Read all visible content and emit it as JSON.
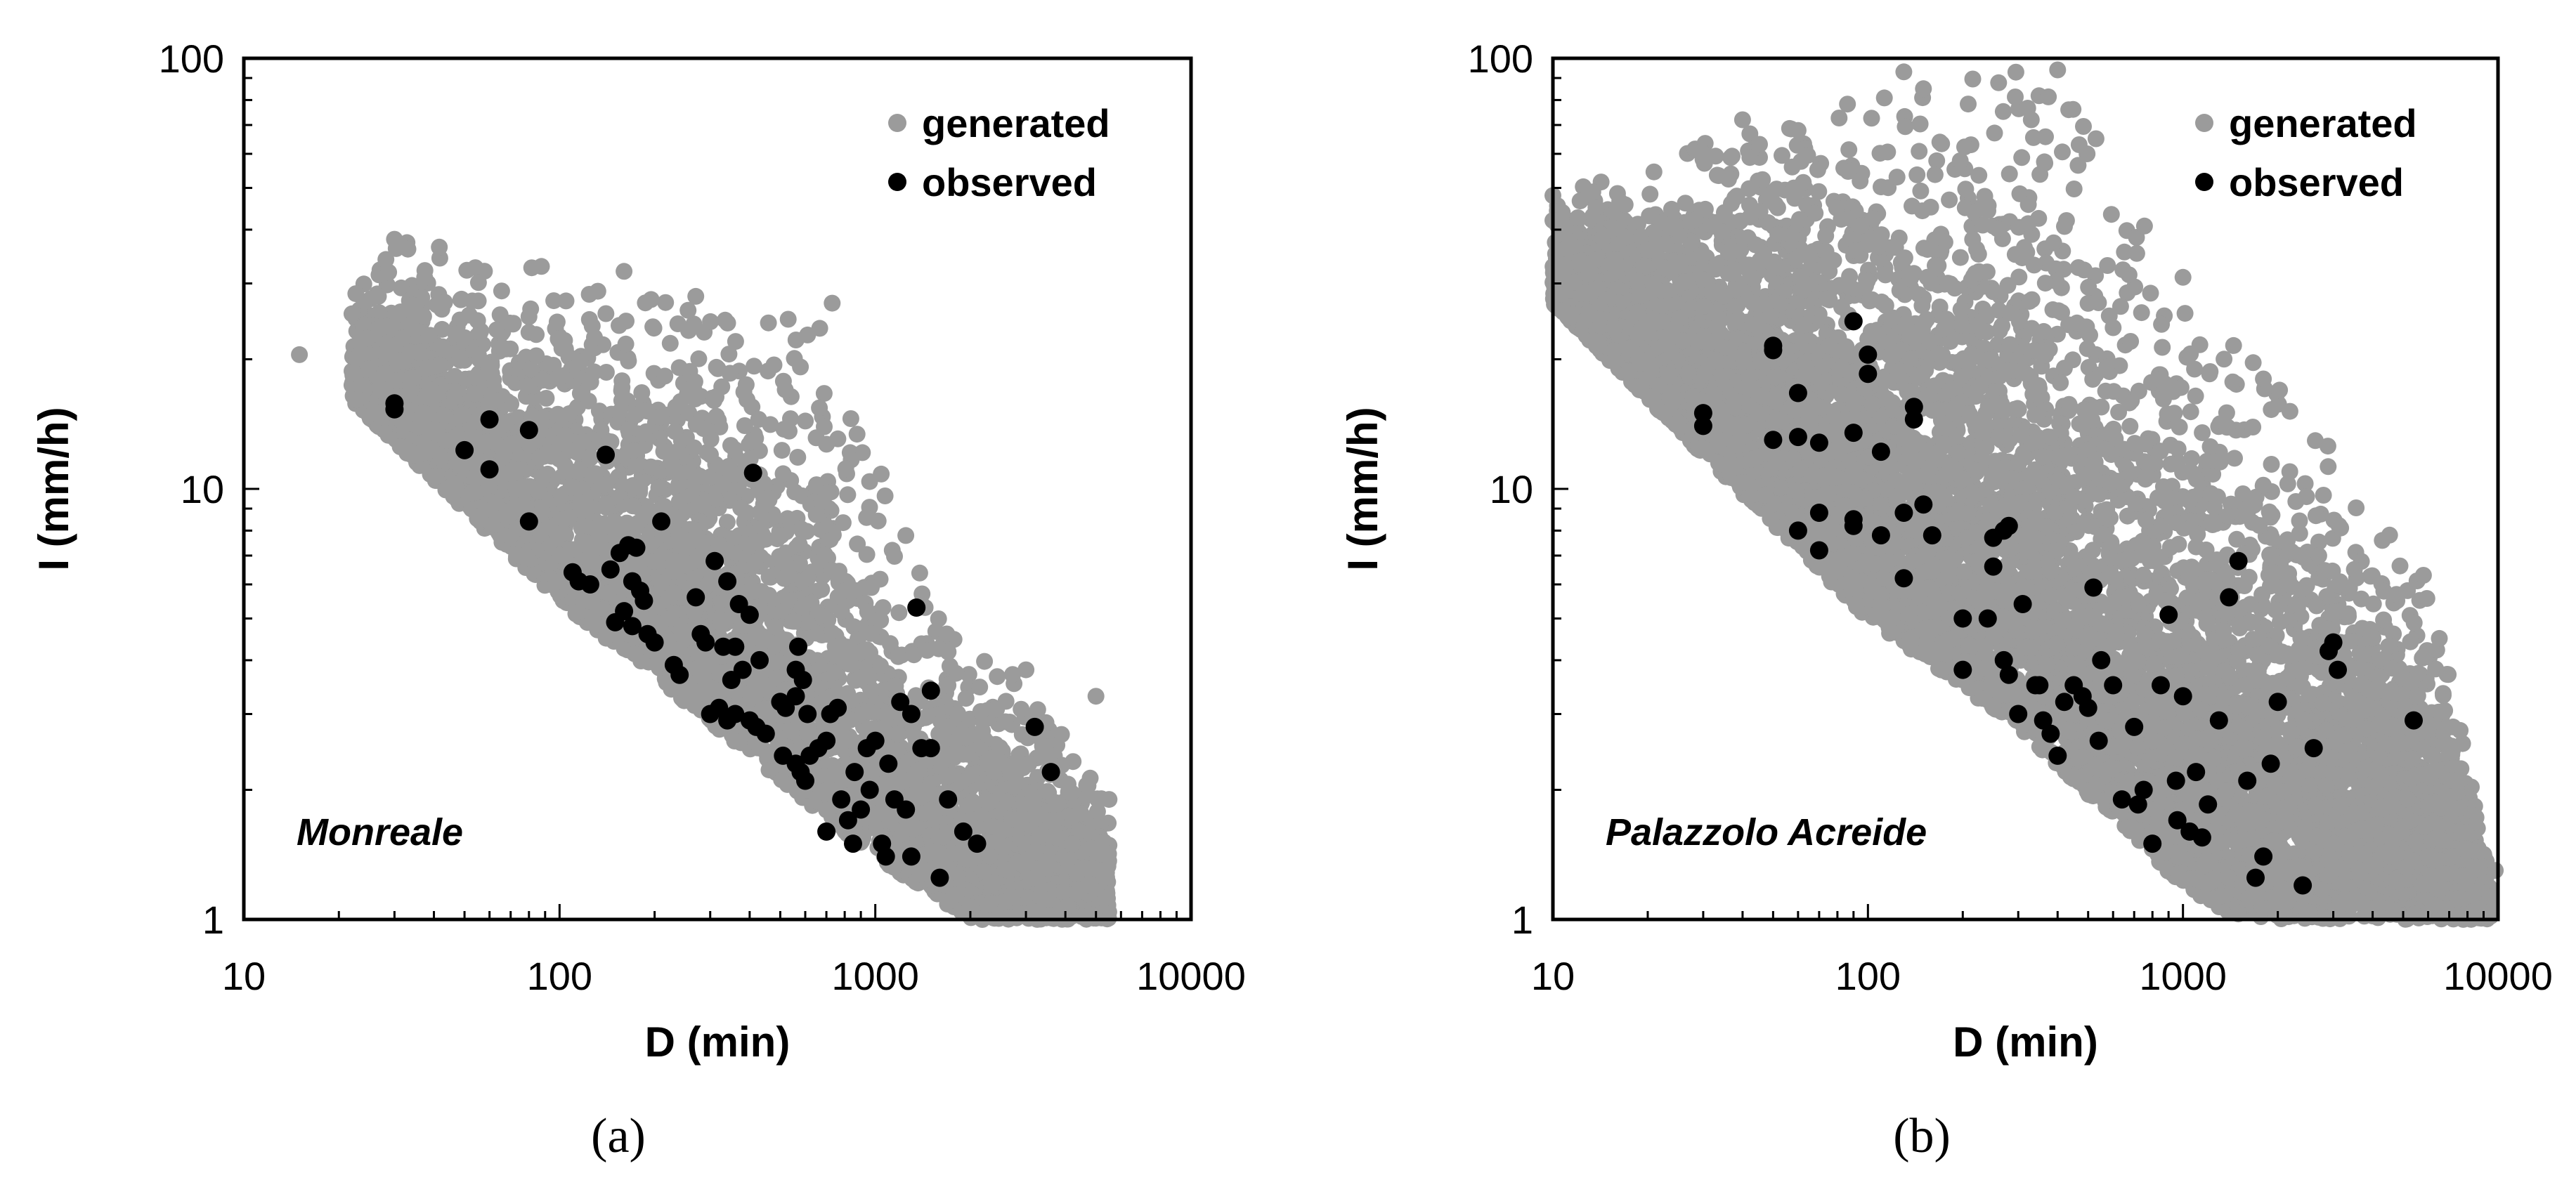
{
  "figure_labels": [
    "(a)",
    "(b)"
  ],
  "colors": {
    "generated": "#9b9b9b",
    "observed": "#000000",
    "frame": "#000000"
  },
  "chart_data": [
    {
      "type": "scatter",
      "panel_label": "(a)",
      "site": "Monreale",
      "xlabel": "D (min)",
      "ylabel": "I (mm/h)",
      "xscale": "log",
      "yscale": "log",
      "xlim": [
        10,
        10000
      ],
      "ylim": [
        1,
        100
      ],
      "xticks": [
        "10",
        "100",
        "1000",
        "10000"
      ],
      "yticks": [
        "1",
        "10",
        "100"
      ],
      "legend": {
        "position": "top-right",
        "entries": [
          "generated",
          "observed"
        ]
      },
      "generated_envelope": {
        "description": "dense cloud of ~10^4 synthetic events",
        "lower_bound": [
          [
            22,
            16
          ],
          [
            100,
            5.5
          ],
          [
            1000,
            1.4
          ],
          [
            2000,
            1.0
          ]
        ],
        "upper_bound": [
          [
            15,
            20
          ],
          [
            30,
            38
          ],
          [
            150,
            32
          ],
          [
            300,
            25
          ],
          [
            700,
            27
          ],
          [
            1500,
            5.5
          ],
          [
            3000,
            3.5
          ],
          [
            5500,
            1.9
          ]
        ],
        "max_D": 5500
      },
      "series": [
        {
          "name": "generated",
          "sample_points": [
            [
              15,
              20.5
            ],
            [
              22,
              25.5
            ],
            [
              30,
              38
            ],
            [
              160,
              32
            ],
            [
              270,
              28
            ],
            [
              730,
              27
            ],
            [
              5000,
              3.3
            ],
            [
              5500,
              1.9
            ],
            [
              4200,
              1.5
            ],
            [
              3900,
              1.05
            ],
            [
              3000,
              3.8
            ],
            [
              1400,
              5.4
            ]
          ]
        },
        {
          "name": "observed",
          "points": [
            [
              30,
              15.8
            ],
            [
              30,
              15.3
            ],
            [
              50,
              12.3
            ],
            [
              60,
              14.5
            ],
            [
              60,
              11.1
            ],
            [
              80,
              13.7
            ],
            [
              80,
              8.4
            ],
            [
              140,
              12
            ],
            [
              410,
              10.9
            ],
            [
              210,
              8.4
            ],
            [
              110,
              6.4
            ],
            [
              115,
              6.1
            ],
            [
              125,
              6.0
            ],
            [
              145,
              6.5
            ],
            [
              155,
              7.1
            ],
            [
              165,
              7.4
            ],
            [
              175,
              7.3
            ],
            [
              170,
              6.1
            ],
            [
              180,
              5.8
            ],
            [
              185,
              5.5
            ],
            [
              160,
              5.2
            ],
            [
              150,
              4.9
            ],
            [
              170,
              4.8
            ],
            [
              190,
              4.6
            ],
            [
              200,
              4.4
            ],
            [
              230,
              3.9
            ],
            [
              240,
              3.7
            ],
            [
              280,
              4.6
            ],
            [
              290,
              4.4
            ],
            [
              270,
              5.6
            ],
            [
              310,
              6.8
            ],
            [
              340,
              6.1
            ],
            [
              370,
              5.4
            ],
            [
              400,
              5.1
            ],
            [
              330,
              4.3
            ],
            [
              360,
              4.3
            ],
            [
              430,
              4.0
            ],
            [
              380,
              3.8
            ],
            [
              350,
              3.6
            ],
            [
              320,
              3.1
            ],
            [
              300,
              3.0
            ],
            [
              340,
              2.9
            ],
            [
              360,
              3.0
            ],
            [
              400,
              2.9
            ],
            [
              420,
              2.8
            ],
            [
              450,
              2.7
            ],
            [
              500,
              3.2
            ],
            [
              520,
              3.1
            ],
            [
              560,
              3.3
            ],
            [
              570,
              4.3
            ],
            [
              560,
              3.8
            ],
            [
              590,
              3.6
            ],
            [
              610,
              3.0
            ],
            [
              510,
              2.4
            ],
            [
              560,
              2.3
            ],
            [
              580,
              2.2
            ],
            [
              600,
              2.1
            ],
            [
              620,
              2.4
            ],
            [
              660,
              2.5
            ],
            [
              700,
              2.6
            ],
            [
              720,
              3.0
            ],
            [
              760,
              3.1
            ],
            [
              780,
              1.9
            ],
            [
              820,
              1.7
            ],
            [
              860,
              2.2
            ],
            [
              900,
              1.8
            ],
            [
              940,
              2.5
            ],
            [
              960,
              2.0
            ],
            [
              1000,
              2.6
            ],
            [
              1050,
              1.5
            ],
            [
              1080,
              1.4
            ],
            [
              1100,
              2.3
            ],
            [
              1150,
              1.9
            ],
            [
              1200,
              3.2
            ],
            [
              1250,
              1.8
            ],
            [
              1300,
              3.0
            ],
            [
              1350,
              5.3
            ],
            [
              1400,
              2.5
            ],
            [
              1500,
              2.5
            ],
            [
              1500,
              3.4
            ],
            [
              1600,
              1.25
            ],
            [
              1700,
              1.9
            ],
            [
              1900,
              1.6
            ],
            [
              2100,
              1.5
            ],
            [
              3200,
              2.8
            ],
            [
              3600,
              2.2
            ],
            [
              1300,
              1.4
            ],
            [
              700,
              1.6
            ],
            [
              850,
              1.5
            ]
          ]
        }
      ]
    },
    {
      "type": "scatter",
      "panel_label": "(b)",
      "site": "Palazzolo Acreide",
      "xlabel": "D (min)",
      "ylabel": "I (mm/h)",
      "xscale": "log",
      "yscale": "log",
      "xlim": [
        10,
        10000
      ],
      "ylim": [
        1,
        100
      ],
      "xticks": [
        "10",
        "100",
        "1000",
        "10000"
      ],
      "yticks": [
        "1",
        "10",
        "100"
      ],
      "legend": {
        "position": "top-right",
        "entries": [
          "generated",
          "observed"
        ]
      },
      "generated_envelope": {
        "description": "dense cloud of ~10^4 synthetic events",
        "lower_bound": [
          [
            10,
            27
          ],
          [
            30,
            12
          ],
          [
            100,
            5
          ],
          [
            300,
            2.8
          ],
          [
            1000,
            1.2
          ],
          [
            1500,
            1.0
          ]
        ],
        "upper_bound": [
          [
            10,
            48
          ],
          [
            40,
            72
          ],
          [
            130,
            93
          ],
          [
            400,
            94
          ],
          [
            1000,
            31
          ],
          [
            2000,
            18
          ],
          [
            6000,
            6.3
          ],
          [
            9500,
            1.3
          ]
        ],
        "max_D": 9500
      },
      "series": [
        {
          "name": "generated",
          "sample_points": [
            [
              10,
              48
            ],
            [
              10,
              42
            ],
            [
              40,
              72
            ],
            [
              60,
              68
            ],
            [
              130,
              93
            ],
            [
              150,
              85
            ],
            [
              400,
              94
            ],
            [
              330,
              72
            ],
            [
              1000,
              31
            ],
            [
              1800,
              18
            ],
            [
              3500,
              6.5
            ],
            [
              5800,
              6.3
            ],
            [
              7200,
              2.8
            ],
            [
              9800,
              1.3
            ]
          ]
        },
        {
          "name": "observed",
          "points": [
            [
              30,
              15
            ],
            [
              30,
              14
            ],
            [
              50,
              21.5
            ],
            [
              50,
              21
            ],
            [
              60,
              16.7
            ],
            [
              50,
              13
            ],
            [
              60,
              13.2
            ],
            [
              70,
              12.8
            ],
            [
              60,
              8
            ],
            [
              70,
              7.2
            ],
            [
              70,
              8.8
            ],
            [
              90,
              24.5
            ],
            [
              100,
              20.5
            ],
            [
              100,
              18.5
            ],
            [
              90,
              13.5
            ],
            [
              110,
              12.2
            ],
            [
              90,
              8.5
            ],
            [
              90,
              8.2
            ],
            [
              110,
              7.8
            ],
            [
              140,
              15.5
            ],
            [
              140,
              14.5
            ],
            [
              130,
              8.8
            ],
            [
              150,
              9.2
            ],
            [
              130,
              6.2
            ],
            [
              160,
              7.8
            ],
            [
              200,
              5
            ],
            [
              200,
              3.8
            ],
            [
              250,
              7.7
            ],
            [
              270,
              8.0
            ],
            [
              280,
              8.2
            ],
            [
              250,
              6.6
            ],
            [
              240,
              5
            ],
            [
              270,
              4.0
            ],
            [
              280,
              3.7
            ],
            [
              300,
              3.0
            ],
            [
              310,
              5.4
            ],
            [
              340,
              3.5
            ],
            [
              350,
              3.5
            ],
            [
              360,
              2.9
            ],
            [
              380,
              2.7
            ],
            [
              400,
              2.4
            ],
            [
              420,
              3.2
            ],
            [
              450,
              3.5
            ],
            [
              480,
              3.3
            ],
            [
              500,
              3.1
            ],
            [
              520,
              5.9
            ],
            [
              550,
              4.0
            ],
            [
              540,
              2.6
            ],
            [
              600,
              3.5
            ],
            [
              640,
              1.9
            ],
            [
              700,
              2.8
            ],
            [
              720,
              1.85
            ],
            [
              750,
              2.0
            ],
            [
              800,
              1.5
            ],
            [
              850,
              3.5
            ],
            [
              900,
              5.1
            ],
            [
              950,
              2.1
            ],
            [
              960,
              1.7
            ],
            [
              1000,
              3.3
            ],
            [
              1050,
              1.6
            ],
            [
              1100,
              2.2
            ],
            [
              1150,
              1.55
            ],
            [
              1200,
              1.85
            ],
            [
              1300,
              2.9
            ],
            [
              1400,
              5.6
            ],
            [
              1500,
              6.8
            ],
            [
              1600,
              2.1
            ],
            [
              1700,
              1.25
            ],
            [
              1800,
              1.4
            ],
            [
              1900,
              2.3
            ],
            [
              2000,
              3.2
            ],
            [
              2400,
              1.2
            ],
            [
              2600,
              2.5
            ],
            [
              2900,
              4.2
            ],
            [
              3000,
              4.4
            ],
            [
              3100,
              3.8
            ],
            [
              5400,
              2.9
            ]
          ]
        }
      ]
    }
  ]
}
